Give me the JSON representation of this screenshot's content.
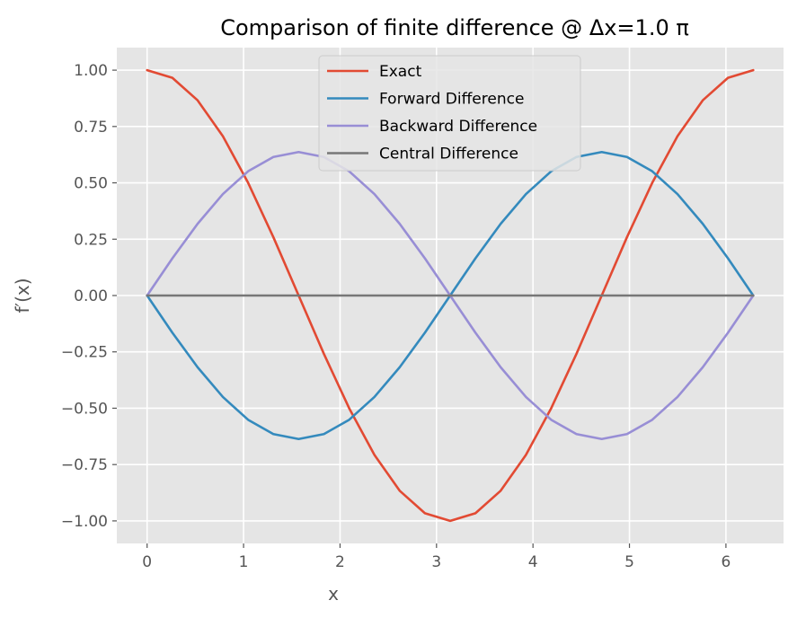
{
  "chart_data": {
    "type": "line",
    "title": "Comparison of finite difference @ Δx=1.0 π",
    "xlabel": "x",
    "ylabel": "f′(x)",
    "xlim": [
      -0.314,
      6.597
    ],
    "ylim": [
      -1.1,
      1.1
    ],
    "x_ticks": [
      0,
      1,
      2,
      3,
      4,
      5,
      6
    ],
    "x_tick_labels": [
      "0",
      "1",
      "2",
      "3",
      "4",
      "5",
      "6"
    ],
    "y_ticks": [
      1.0,
      0.75,
      0.5,
      0.25,
      0.0,
      -0.25,
      -0.5,
      -0.75,
      -1.0
    ],
    "y_tick_labels": [
      "1.00",
      "0.75",
      "0.50",
      "0.25",
      "0.00",
      "−0.25",
      "−0.50",
      "−0.75",
      "−1.00"
    ],
    "grid": true,
    "legend_position": "top-center",
    "x": [
      0.0,
      0.2618,
      0.5236,
      0.7854,
      1.0472,
      1.309,
      1.5708,
      1.8326,
      2.0944,
      2.3562,
      2.618,
      2.8798,
      3.1416,
      3.4034,
      3.6652,
      3.927,
      4.1888,
      4.4506,
      4.7124,
      4.9742,
      5.236,
      5.4978,
      5.7596,
      6.0214,
      6.2832
    ],
    "series": [
      {
        "name": "Exact",
        "color": "#E24A33",
        "values": [
          1.0,
          0.9659,
          0.866,
          0.7071,
          0.5,
          0.2588,
          0.0,
          -0.2588,
          -0.5,
          -0.7071,
          -0.866,
          -0.9659,
          -1.0,
          -0.9659,
          -0.866,
          -0.7071,
          -0.5,
          -0.2588,
          0.0,
          0.2588,
          0.5,
          0.7071,
          0.866,
          0.9659,
          1.0
        ]
      },
      {
        "name": "Forward Difference",
        "color": "#348ABD",
        "values": [
          0.0,
          -0.1648,
          -0.3183,
          -0.4502,
          -0.5513,
          -0.6149,
          -0.6366,
          -0.6149,
          -0.5513,
          -0.4502,
          -0.3183,
          -0.1648,
          0.0,
          0.1648,
          0.3183,
          0.4502,
          0.5513,
          0.6149,
          0.6366,
          0.6149,
          0.5513,
          0.4502,
          0.3183,
          0.1648,
          0.0
        ]
      },
      {
        "name": "Backward Difference",
        "color": "#988ED5",
        "values": [
          0.0,
          0.1648,
          0.3183,
          0.4502,
          0.5513,
          0.6149,
          0.6366,
          0.6149,
          0.5513,
          0.4502,
          0.3183,
          0.1648,
          0.0,
          -0.1648,
          -0.3183,
          -0.4502,
          -0.5513,
          -0.6149,
          -0.6366,
          -0.6149,
          -0.5513,
          -0.4502,
          -0.3183,
          -0.1648,
          0.0
        ]
      },
      {
        "name": "Central Difference",
        "color": "#777777",
        "values": [
          0.0,
          0.0,
          0.0,
          0.0,
          0.0,
          0.0,
          0.0,
          0.0,
          0.0,
          0.0,
          0.0,
          0.0,
          0.0,
          0.0,
          0.0,
          0.0,
          0.0,
          0.0,
          0.0,
          0.0,
          0.0,
          0.0,
          0.0,
          0.0,
          0.0
        ]
      }
    ]
  },
  "colors": {
    "plot_background": "#E5E5E5",
    "grid": "#FFFFFF",
    "tick_text": "#555555"
  }
}
